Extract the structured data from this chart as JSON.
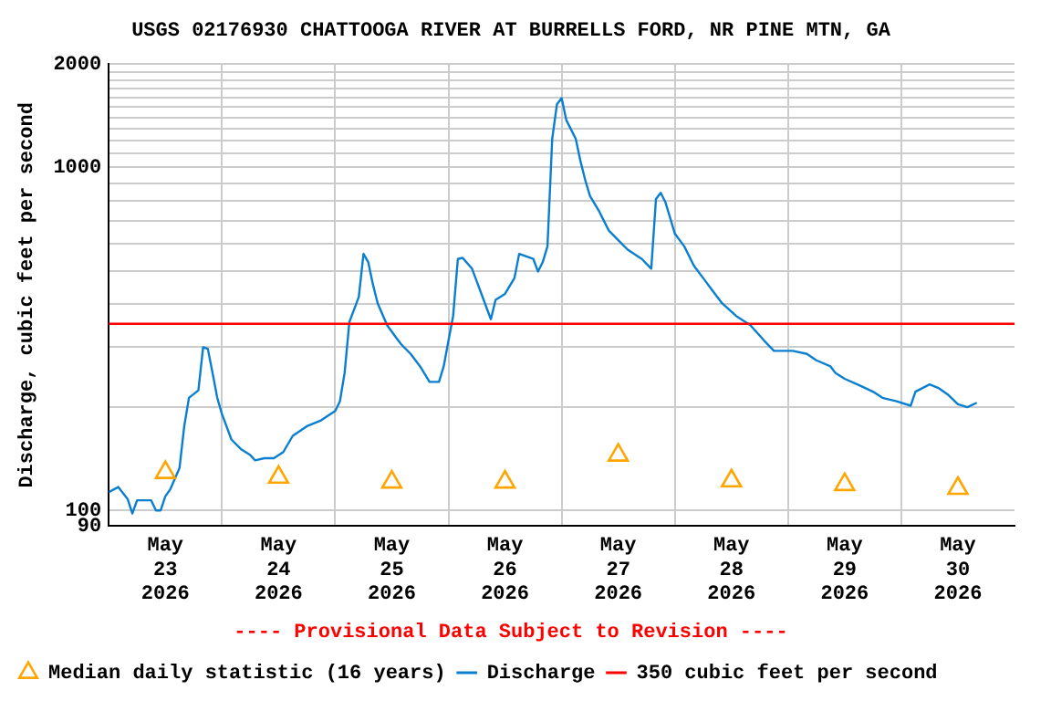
{
  "chart_data": {
    "type": "line",
    "title": "USGS 02176930 CHATTOOGA RIVER AT BURRELLS FORD, NR PINE MTN, GA",
    "ylabel": "Discharge, cubic feet per second",
    "log": "y",
    "grid": true,
    "legend": "bottom",
    "annotations": [
      "---- Provisional Data Subject to Revision ----"
    ],
    "xlim": [
      "2026-05-23T00:00",
      "2026-05-31T00:00"
    ],
    "xticks": [
      {
        "value": "2026-05-23T12:00",
        "label": "May\n23\n2026"
      },
      {
        "value": "2026-05-24T00:00",
        "label": null
      },
      {
        "value": "2026-05-24T12:00",
        "label": "May\n24\n2026"
      },
      {
        "value": "2026-05-25T00:00",
        "label": null
      },
      {
        "value": "2026-05-25T12:00",
        "label": "May\n25\n2026"
      },
      {
        "value": "2026-05-26T00:00",
        "label": null
      },
      {
        "value": "2026-05-26T12:00",
        "label": "May\n26\n2026"
      },
      {
        "value": "2026-05-27T00:00",
        "label": null
      },
      {
        "value": "2026-05-27T12:00",
        "label": "May\n27\n2026"
      },
      {
        "value": "2026-05-28T00:00",
        "label": null
      },
      {
        "value": "2026-05-28T12:00",
        "label": "May\n28\n2026"
      },
      {
        "value": "2026-05-29T00:00",
        "label": null
      },
      {
        "value": "2026-05-29T12:00",
        "label": "May\n29\n2026"
      },
      {
        "value": "2026-05-30T00:00",
        "label": null
      },
      {
        "value": "2026-05-30T12:00",
        "label": "May\n30\n2026"
      }
    ],
    "ylim": [
      90,
      2000
    ],
    "yticks": [
      90,
      100,
      {
        "value": 200,
        "label": null
      },
      {
        "value": 300,
        "label": null
      },
      {
        "value": 400,
        "label": null
      },
      {
        "value": 500,
        "label": null
      },
      {
        "value": 600,
        "label": null
      },
      {
        "value": 700,
        "label": null
      },
      {
        "value": 800,
        "label": null
      },
      {
        "value": 900,
        "label": null
      },
      1000,
      {
        "value": 1100,
        "label": null
      },
      {
        "value": 1200,
        "label": null
      },
      {
        "value": 1300,
        "label": null
      },
      {
        "value": 1400,
        "label": null
      },
      {
        "value": 1500,
        "label": null
      },
      {
        "value": 1600,
        "label": null
      },
      {
        "value": 1700,
        "label": null
      },
      {
        "value": 1800,
        "label": null
      },
      {
        "value": 1900,
        "label": null
      },
      2000
    ],
    "ref_lines": [
      {
        "axis": "y",
        "value": 350,
        "label": "350 cubic feet per second",
        "color": "#ff0000"
      }
    ],
    "series": [
      {
        "name": "Median daily statistic (16 years)",
        "type": "scatter",
        "marker": "triangle",
        "color": "#ffa500",
        "x": [
          "2026-05-23T12:00",
          "2026-05-24T12:00",
          "2026-05-25T12:00",
          "2026-05-26T12:00",
          "2026-05-27T12:00",
          "2026-05-28T12:00",
          "2026-05-29T12:00",
          "2026-05-30T12:00"
        ],
        "values": [
          129,
          125,
          121,
          121,
          145,
          122,
          119,
          116
        ]
      },
      {
        "name": "Discharge",
        "color": "#0a7fcf",
        "x": [
          "2026-05-23T00:00",
          "2026-05-23T02:00",
          "2026-05-23T04:00",
          "2026-05-23T05:00",
          "2026-05-23T06:00",
          "2026-05-23T09:00",
          "2026-05-23T10:00",
          "2026-05-23T11:00",
          "2026-05-23T12:00",
          "2026-05-23T13:00",
          "2026-05-23T15:00",
          "2026-05-23T16:00",
          "2026-05-23T17:00",
          "2026-05-23T19:00",
          "2026-05-23T20:00",
          "2026-05-23T21:00",
          "2026-05-23T22:00",
          "2026-05-23T23:00",
          "2026-05-24T00:00",
          "2026-05-24T02:00",
          "2026-05-24T04:00",
          "2026-05-24T06:00",
          "2026-05-24T07:00",
          "2026-05-24T09:00",
          "2026-05-24T11:00",
          "2026-05-24T13:00",
          "2026-05-24T15:00",
          "2026-05-24T18:00",
          "2026-05-24T21:00",
          "2026-05-25T00:00",
          "2026-05-25T01:00",
          "2026-05-25T02:00",
          "2026-05-25T03:00",
          "2026-05-25T05:00",
          "2026-05-25T06:00",
          "2026-05-25T07:00",
          "2026-05-25T08:00",
          "2026-05-25T09:00",
          "2026-05-25T11:00",
          "2026-05-25T13:00",
          "2026-05-25T14:00",
          "2026-05-25T16:00",
          "2026-05-25T18:00",
          "2026-05-25T20:00",
          "2026-05-25T22:00",
          "2026-05-25T23:00",
          "2026-05-26T00:00",
          "2026-05-26T01:00",
          "2026-05-26T02:00",
          "2026-05-26T03:00",
          "2026-05-26T05:00",
          "2026-05-26T06:00",
          "2026-05-26T07:00",
          "2026-05-26T09:00",
          "2026-05-26T10:00",
          "2026-05-26T12:00",
          "2026-05-26T14:00",
          "2026-05-26T15:00",
          "2026-05-26T18:00",
          "2026-05-26T19:00",
          "2026-05-26T20:00",
          "2026-05-26T21:00",
          "2026-05-26T22:00",
          "2026-05-26T23:00",
          "2026-05-27T00:00",
          "2026-05-27T01:00",
          "2026-05-27T03:00",
          "2026-05-27T04:00",
          "2026-05-27T05:00",
          "2026-05-27T06:00",
          "2026-05-27T08:00",
          "2026-05-27T09:00",
          "2026-05-27T10:00",
          "2026-05-27T12:00",
          "2026-05-27T14:00",
          "2026-05-27T17:00",
          "2026-05-27T19:00",
          "2026-05-27T20:00",
          "2026-05-27T21:00",
          "2026-05-27T22:00",
          "2026-05-27T23:00",
          "2026-05-28T00:00",
          "2026-05-28T02:00",
          "2026-05-28T04:00",
          "2026-05-28T06:00",
          "2026-05-28T08:00",
          "2026-05-28T10:00",
          "2026-05-28T13:00",
          "2026-05-28T16:00",
          "2026-05-28T19:00",
          "2026-05-28T21:00",
          "2026-05-29T01:00",
          "2026-05-29T04:00",
          "2026-05-29T06:00",
          "2026-05-29T09:00",
          "2026-05-29T10:00",
          "2026-05-29T12:00",
          "2026-05-29T15:00",
          "2026-05-29T18:00",
          "2026-05-29T20:00",
          "2026-05-29T23:00",
          "2026-05-30T02:00",
          "2026-05-30T03:00",
          "2026-05-30T06:00",
          "2026-05-30T08:00",
          "2026-05-30T10:00",
          "2026-05-30T12:00",
          "2026-05-30T14:00",
          "2026-05-30T16:00"
        ],
        "values": [
          113,
          117,
          108,
          98,
          107,
          107,
          100,
          100,
          110,
          115,
          133,
          176,
          213,
          224,
          299,
          296,
          252,
          213,
          191,
          161,
          151,
          145,
          140,
          142,
          142,
          148,
          165,
          176,
          183,
          195,
          208,
          252,
          354,
          419,
          560,
          530,
          456,
          402,
          347,
          318,
          305,
          286,
          263,
          237,
          237,
          263,
          312,
          369,
          541,
          545,
          507,
          466,
          428,
          361,
          411,
          428,
          476,
          560,
          541,
          497,
          530,
          589,
          1211,
          1528,
          1594,
          1374,
          1211,
          1043,
          919,
          826,
          743,
          697,
          655,
          614,
          576,
          541,
          507,
          809,
          844,
          792,
          713,
          641,
          589,
          518,
          476,
          437,
          402,
          369,
          347,
          312,
          292,
          292,
          286,
          274,
          263,
          252,
          242,
          232,
          222,
          213,
          208,
          202,
          222,
          233,
          227,
          217,
          204,
          200,
          206
        ]
      }
    ]
  }
}
